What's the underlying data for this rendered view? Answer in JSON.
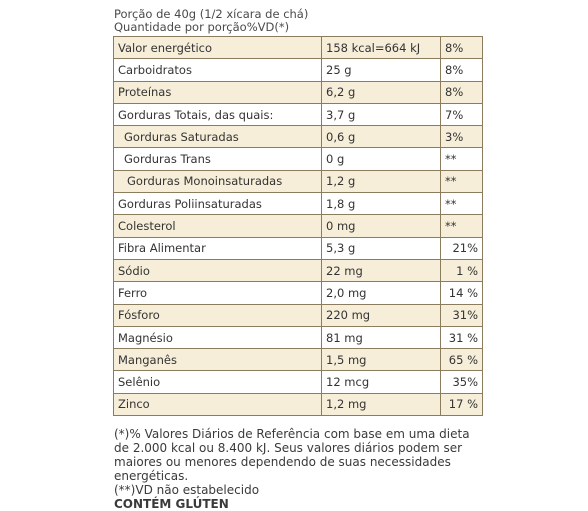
{
  "header": {
    "serving": "Porção de 40g (1/2 xícara de chá)",
    "columns": "Quantidade por porção%VD(*)"
  },
  "table": {
    "rows": [
      [
        "Valor energético",
        "158 kcal=664 kJ",
        "8%"
      ],
      [
        "Carboidratos",
        "25 g",
        "8%"
      ],
      [
        "Proteínas",
        "6,2 g",
        "8%"
      ],
      [
        "Gorduras Totais, das quais:",
        "3,7 g",
        "7%"
      ],
      [
        "Gorduras Saturadas",
        "0,6 g",
        "3%"
      ],
      [
        "Gorduras Trans",
        "0 g",
        "**"
      ],
      [
        "Gorduras Monoinsaturadas",
        "1,2 g",
        "**"
      ],
      [
        "Gorduras Poliinsaturadas",
        "1,8 g",
        "**"
      ],
      [
        "Colesterol",
        "0 mg",
        "**"
      ],
      [
        "Fibra Alimentar",
        "5,3 g",
        "21%"
      ],
      [
        "Sódio",
        "22 mg",
        "1 %"
      ],
      [
        "Ferro",
        "2,0 mg",
        "14 %"
      ],
      [
        "Fósforo",
        "220 mg",
        "31%"
      ],
      [
        "Magnésio",
        "81 mg",
        "31 %"
      ],
      [
        "Manganês",
        "1,5 mg",
        "65 %"
      ],
      [
        "Selênio",
        "12 mcg",
        "35%"
      ],
      [
        "Zinco",
        "1,2 mg",
        "17 %"
      ]
    ]
  },
  "footer": {
    "note1": "(*)% Valores Diários de Referência com base em uma dieta de 2.000 kcal ou 8.400 kJ. Seus valores diários podem ser maiores ou menores dependendo de suas necessidades energéticas.",
    "note2": "(**)VD não estabelecido",
    "allergen": "CONTÉM GLÚTEN"
  }
}
